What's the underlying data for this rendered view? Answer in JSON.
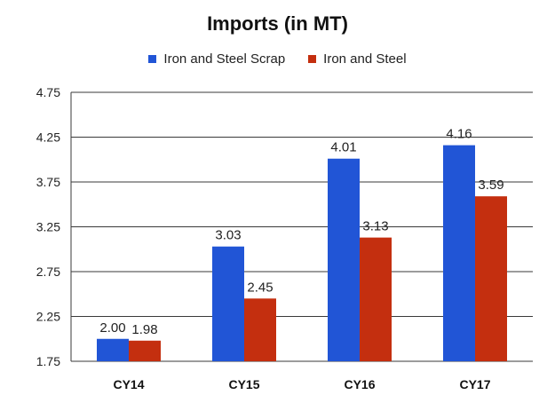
{
  "chart_data": {
    "type": "bar",
    "title": "Imports (in MT)",
    "categories": [
      "CY14",
      "CY15",
      "CY16",
      "CY17"
    ],
    "series": [
      {
        "name": "Iron and Steel Scrap",
        "color": "#2155d6",
        "values": [
          2.0,
          3.03,
          4.01,
          4.16
        ],
        "labels": [
          "2.00",
          "3.03",
          "4.01",
          "4.16"
        ]
      },
      {
        "name": "Iron and Steel",
        "color": "#c42f0f",
        "values": [
          1.98,
          2.45,
          3.13,
          3.59
        ],
        "labels": [
          "1.98",
          "2.45",
          "3.13",
          "3.59"
        ]
      }
    ],
    "ylim": [
      1.75,
      4.75
    ],
    "yticks": [
      "4.75",
      "4.25",
      "3.75",
      "3.25",
      "2.75",
      "2.25",
      "1.75"
    ],
    "grid": true,
    "legend_position": "top"
  }
}
